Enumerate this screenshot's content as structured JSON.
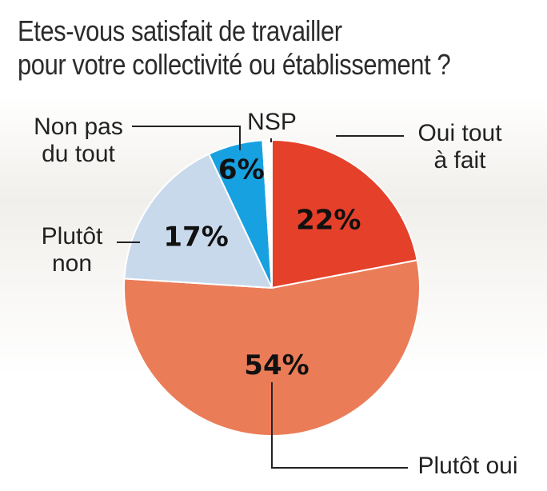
{
  "title_lines": [
    "Etes-vous satisfait de travailler",
    "pour votre collectivité ou établissement ?"
  ],
  "chart_data": {
    "type": "pie",
    "title": "Etes-vous satisfait de travailler pour votre collectivité ou établissement ?",
    "slices": [
      {
        "label": "Oui tout à fait",
        "label_lines": [
          "Oui tout",
          "à fait"
        ],
        "value": 22,
        "value_text": "22%",
        "color": "#e5402a"
      },
      {
        "label": "Plutôt oui",
        "label_lines": [
          "Plutôt oui"
        ],
        "value": 54,
        "value_text": "54%",
        "color": "#eb7c58"
      },
      {
        "label": "Plutôt non",
        "label_lines": [
          "Plutôt",
          "non"
        ],
        "value": 17,
        "value_text": "17%",
        "color": "#c9d9ec"
      },
      {
        "label": "Non pas du tout",
        "label_lines": [
          "Non pas",
          "du tout"
        ],
        "value": 6,
        "value_text": "6%",
        "color": "#17a1e0"
      },
      {
        "label": "NSP",
        "label_lines": [
          "NSP"
        ],
        "value": 1,
        "value_text": "",
        "color": "#ffffff"
      }
    ]
  }
}
